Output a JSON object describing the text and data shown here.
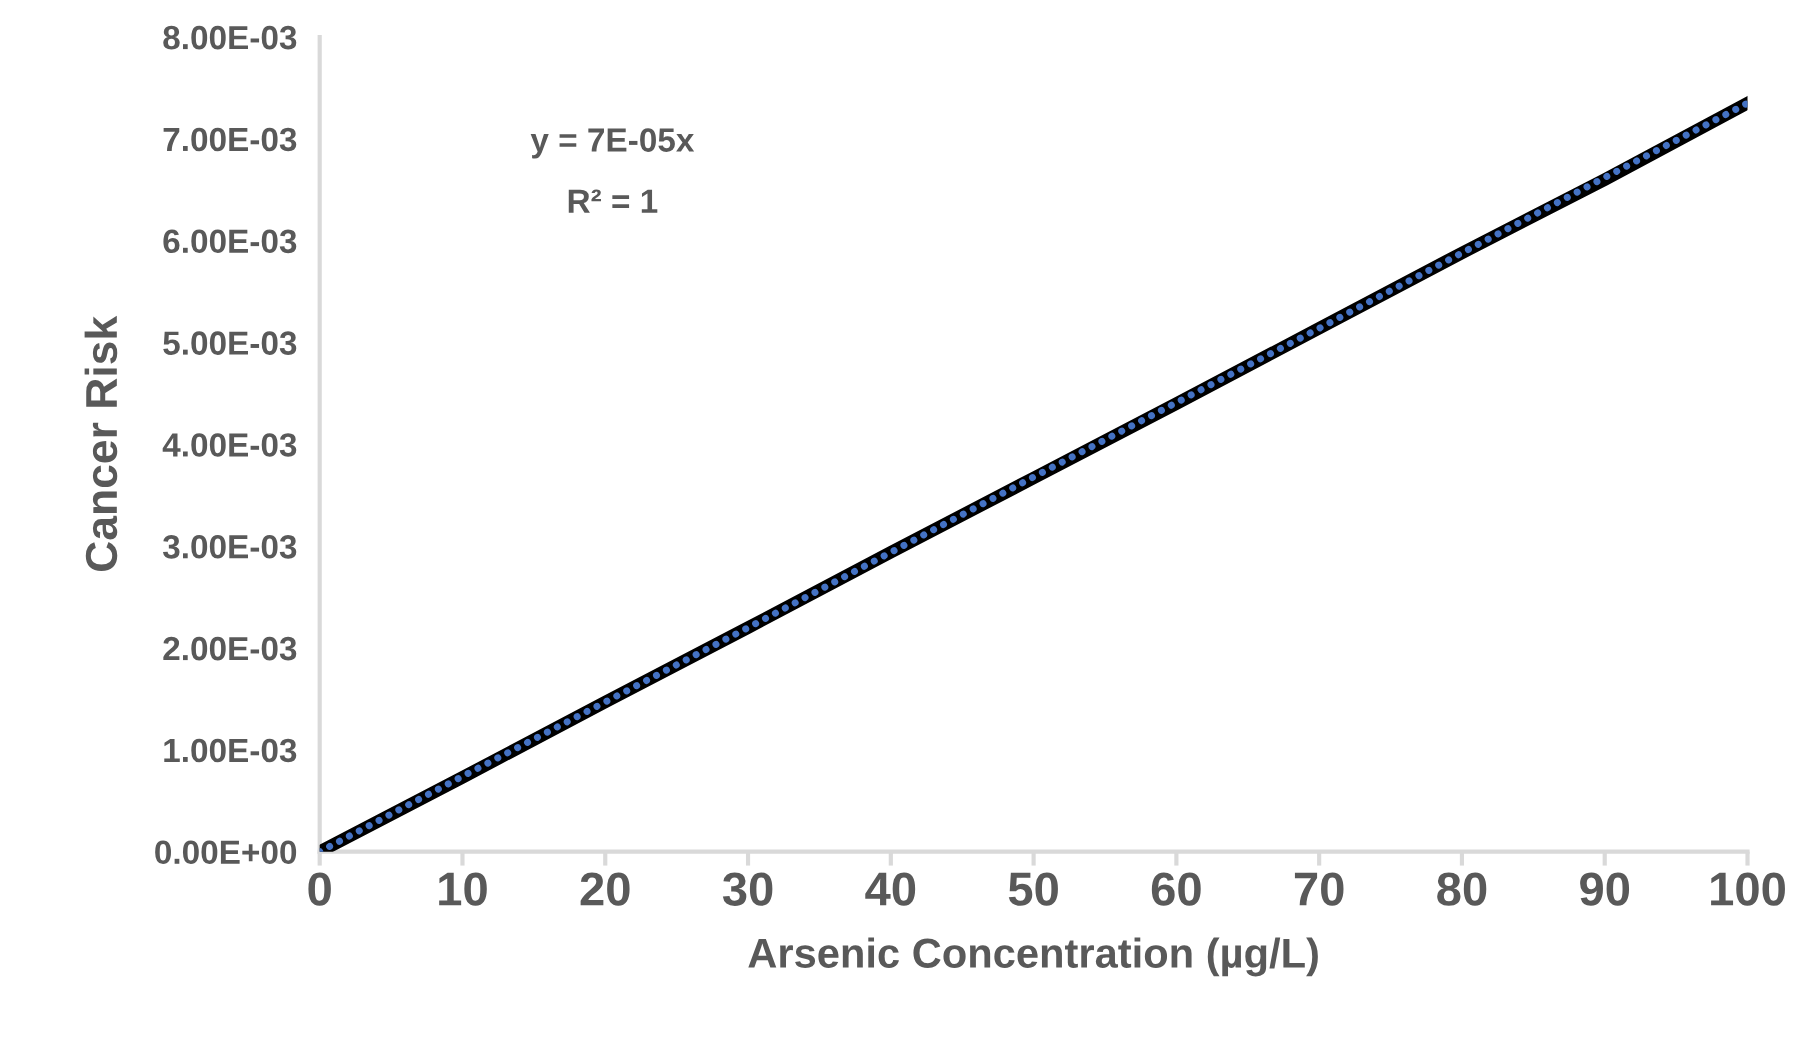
{
  "chart_data": {
    "type": "line",
    "xlabel": "Arsenic Concentration (µg/L)",
    "ylabel": "Cancer Risk",
    "x": [
      0,
      10,
      20,
      30,
      40,
      50,
      60,
      70,
      80,
      90,
      100
    ],
    "series": [
      {
        "color": "#000000",
        "line_style": "solid",
        "values": [
          0,
          0.00073,
          0.00147,
          0.0022,
          0.00294,
          0.00367,
          0.0044,
          0.00514,
          0.00588,
          0.0066,
          0.00735
        ]
      },
      {
        "color": "#4472c4",
        "line_style": "dotted",
        "values": [
          0,
          0.00074,
          0.00147,
          0.0022,
          0.00294,
          0.00368,
          0.00441,
          0.00514,
          0.00588,
          0.00662,
          0.00735
        ]
      }
    ],
    "annotations": [
      "y = 7E-05x",
      "R² = 1"
    ],
    "xlim": [
      0,
      100
    ],
    "xticks": [
      0,
      10,
      20,
      30,
      40,
      50,
      60,
      70,
      80,
      90,
      100
    ],
    "ylim": [
      0,
      0.008
    ],
    "yticks": [
      {
        "value": 0,
        "label": "0.00E+00"
      },
      {
        "value": 0.001,
        "label": "1.00E-03"
      },
      {
        "value": 0.002,
        "label": "2.00E-03"
      },
      {
        "value": 0.003,
        "label": "3.00E-03"
      },
      {
        "value": 0.004,
        "label": "4.00E-03"
      },
      {
        "value": 0.005,
        "label": "5.00E-03"
      },
      {
        "value": 0.006,
        "label": "6.00E-03"
      },
      {
        "value": 0.007,
        "label": "7.00E-03"
      },
      {
        "value": 0.008,
        "label": "8.00E-03"
      }
    ],
    "grid": false,
    "legend": false,
    "marker": "none"
  }
}
